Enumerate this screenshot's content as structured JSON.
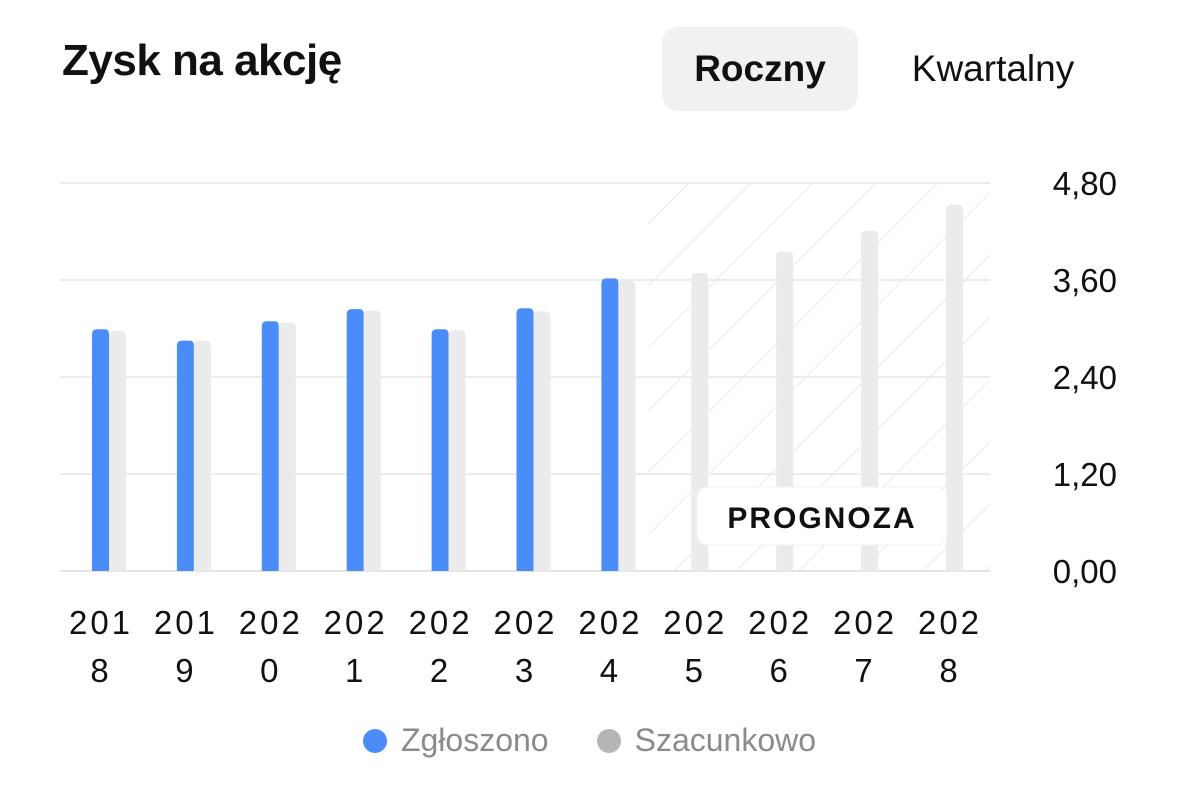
{
  "header": {
    "title": "Zysk na akcję",
    "tabs": [
      {
        "label": "Roczny",
        "active": true
      },
      {
        "label": "Kwartalny",
        "active": false
      }
    ]
  },
  "colors": {
    "reported": "#4a8df8",
    "estimate": "#ebebeb",
    "legend_estimate_dot": "#b5b5b5",
    "grid": "#ececec",
    "hatch": "#e9e9e9"
  },
  "chart_data": {
    "type": "bar",
    "title": "Zysk na akcję",
    "categories": [
      [
        "201",
        "8"
      ],
      [
        "201",
        "9"
      ],
      [
        "202",
        "0"
      ],
      [
        "202",
        "1"
      ],
      [
        "202",
        "2"
      ],
      [
        "202",
        "3"
      ],
      [
        "202",
        "4"
      ],
      [
        "202",
        "5"
      ],
      [
        "202",
        "6"
      ],
      [
        "202",
        "7"
      ],
      [
        "202",
        "8"
      ]
    ],
    "series": [
      {
        "name": "Zgłoszono",
        "values": [
          2.99,
          2.85,
          3.09,
          3.24,
          2.99,
          3.25,
          3.62,
          null,
          null,
          null,
          null
        ]
      },
      {
        "name": "Szacunkowo",
        "values": [
          2.97,
          2.85,
          3.07,
          3.22,
          2.98,
          3.21,
          3.59,
          3.69,
          3.95,
          4.21,
          4.53
        ]
      }
    ],
    "yticks": [
      "0,00",
      "1,20",
      "2,40",
      "3,60",
      "4,80"
    ],
    "ylim": [
      0,
      4.8
    ],
    "grid": true,
    "forecast_label": "PROGNOZA",
    "forecast_start_index": 7,
    "legend_position": "bottom-center"
  }
}
